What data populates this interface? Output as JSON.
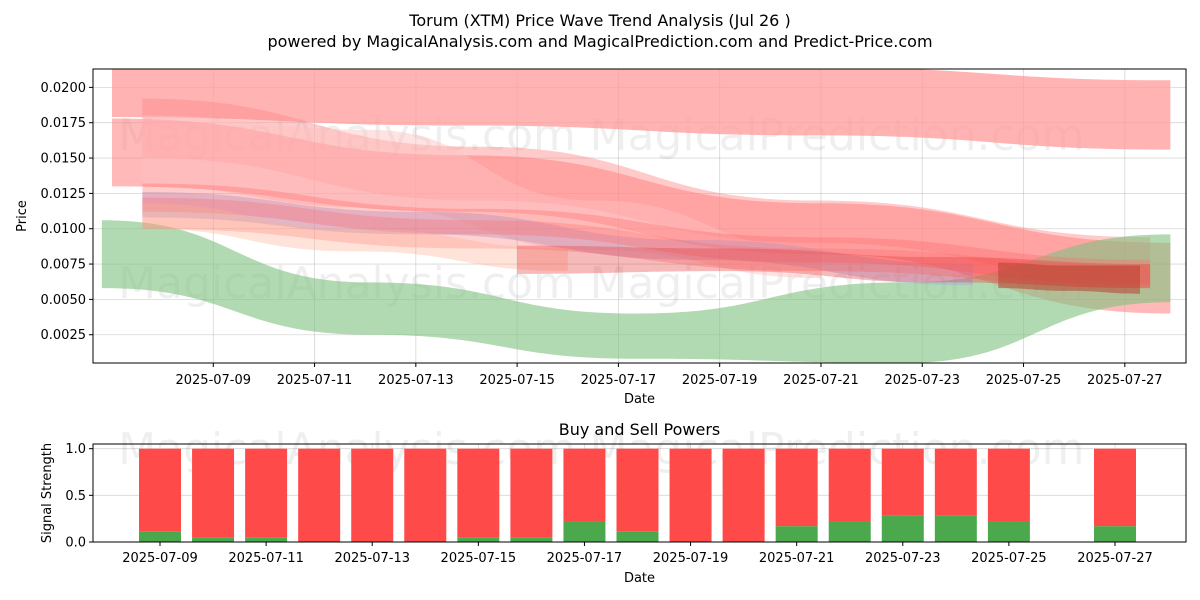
{
  "title_line1": "Torum (XTM) Price Wave Trend Analysis (Jul 26 )",
  "title_line2": "powered by MagicalAnalysis.com and MagicalPrediction.com and Predict-Price.com",
  "watermarks": [
    "MagicalAnalysis.com",
    "MagicalPrediction.com"
  ],
  "colors": {
    "sell": "#ff4a4a",
    "buy": "#4ca84c",
    "band_red": "#ff8080",
    "band_green": "#7fc27f",
    "band_blue": "#a0a8e0"
  },
  "chart_data": [
    {
      "type": "area",
      "title": "Price Wave Trend",
      "xlabel": "Date",
      "ylabel": "Price",
      "xlim": [
        "2025-07-06T15:00",
        "2025-07-28T05:00"
      ],
      "ylim": [
        0.0005,
        0.0213
      ],
      "x_ticks": [
        "2025-07-09",
        "2025-07-11",
        "2025-07-13",
        "2025-07-15",
        "2025-07-17",
        "2025-07-19",
        "2025-07-21",
        "2025-07-23",
        "2025-07-25",
        "2025-07-27"
      ],
      "y_ticks": [
        "0.0025",
        "0.0050",
        "0.0075",
        "0.0100",
        "0.0125",
        "0.0150",
        "0.0175",
        "0.0200"
      ],
      "grid": true,
      "series": [
        {
          "name": "band-top",
          "color": "#ff9a9a",
          "opacity": 0.75,
          "x0": "2025-07-07",
          "x1": "2025-07-27.9",
          "upper": [
            0.0214,
            0.0214,
            0.0214,
            0.0205
          ],
          "lower": [
            0.0179,
            0.0173,
            0.0166,
            0.0156
          ]
        },
        {
          "name": "band-wide-red",
          "color": "#ff8080",
          "opacity": 0.55,
          "x0": "2025-07-07",
          "x1": "2025-07-27.9",
          "upper": [
            0.0178,
            0.0152,
            0.0118,
            0.009
          ],
          "lower": [
            0.013,
            0.0112,
            0.0082,
            0.004
          ]
        },
        {
          "name": "band-upper-red",
          "color": "#ff8a8a",
          "opacity": 0.45,
          "x0": "2025-07-07.6",
          "x1": "2025-07-27.5",
          "upper": [
            0.0192,
            0.0158,
            0.012,
            0.0094
          ],
          "lower": [
            0.015,
            0.012,
            0.009,
            0.0062
          ]
        },
        {
          "name": "band-pink-curve",
          "color": "#ffc0c0",
          "opacity": 0.45,
          "x0": "2025-07-07.6",
          "x1": "2025-07-21",
          "upper": [
            0.018,
            0.017,
            0.012,
            0.0085
          ],
          "lower": [
            0.013,
            0.0115,
            0.0085,
            0.0065
          ]
        },
        {
          "name": "band-green",
          "color": "#7fc27f",
          "opacity": 0.6,
          "x0": "2025-07-06.8",
          "x1": "2025-07-27.9",
          "upper": [
            0.0106,
            0.0062,
            0.004,
            0.0062,
            0.0096
          ],
          "lower": [
            0.0058,
            0.0025,
            0.0008,
            0.0005,
            0.0048
          ]
        },
        {
          "name": "band-blue",
          "color": "#a0a8e0",
          "opacity": 0.45,
          "x0": "2025-07-07.6",
          "x1": "2025-07-24",
          "upper": [
            0.0126,
            0.0112,
            0.0092,
            0.0075
          ],
          "lower": [
            0.0108,
            0.0096,
            0.0078,
            0.006
          ]
        },
        {
          "name": "band-mid-red-1",
          "color": "#ff6a6a",
          "opacity": 0.35,
          "x0": "2025-07-07.6",
          "x1": "2025-07-27.5",
          "upper": [
            0.0132,
            0.0114,
            0.0094,
            0.0078
          ],
          "lower": [
            0.0112,
            0.0096,
            0.0076,
            0.006
          ]
        },
        {
          "name": "band-mid-red-2",
          "color": "#ff6a6a",
          "opacity": 0.3,
          "x0": "2025-07-07.6",
          "x1": "2025-07-27.5",
          "upper": [
            0.0122,
            0.0106,
            0.0086,
            0.0074
          ],
          "lower": [
            0.01,
            0.0086,
            0.007,
            0.0058
          ]
        },
        {
          "name": "band-orange",
          "color": "#ffb090",
          "opacity": 0.35,
          "x0": "2025-07-07.6",
          "x1": "2025-07-16",
          "upper": [
            0.0118,
            0.01,
            0.0086
          ],
          "lower": [
            0.01,
            0.0084,
            0.007
          ]
        },
        {
          "name": "band-deep-red",
          "color": "#e83a3a",
          "opacity": 0.35,
          "x0": "2025-07-15",
          "x1": "2025-07-27.5",
          "upper": [
            0.0088,
            0.0086,
            0.008,
            0.0075
          ],
          "lower": [
            0.0068,
            0.007,
            0.0062,
            0.0058
          ]
        },
        {
          "name": "band-dark-end",
          "color": "#b84030",
          "opacity": 0.55,
          "x0": "2025-07-24.5",
          "x1": "2025-07-27.3",
          "upper": [
            0.0076,
            0.0074,
            0.0074
          ],
          "lower": [
            0.0058,
            0.0056,
            0.0054
          ]
        }
      ]
    },
    {
      "type": "bar",
      "title": "Buy and Sell Powers",
      "xlabel": "Date",
      "ylabel": "Signal Strength",
      "ylim": [
        0,
        1.05
      ],
      "y_ticks": [
        "0.0",
        "0.5",
        "1.0"
      ],
      "x_ticks": [
        "2025-07-09",
        "2025-07-11",
        "2025-07-13",
        "2025-07-15",
        "2025-07-17",
        "2025-07-19",
        "2025-07-21",
        "2025-07-23",
        "2025-07-25",
        "2025-07-27"
      ],
      "stacked": true,
      "categories": [
        "2025-07-09",
        "2025-07-10",
        "2025-07-11",
        "2025-07-12",
        "2025-07-13",
        "2025-07-14",
        "2025-07-15",
        "2025-07-16",
        "2025-07-17",
        "2025-07-18",
        "2025-07-19",
        "2025-07-20",
        "2025-07-21",
        "2025-07-22",
        "2025-07-23",
        "2025-07-24",
        "2025-07-25",
        "2025-07-27"
      ],
      "series": [
        {
          "name": "Buy",
          "values": [
            0.11,
            0.05,
            0.05,
            0.0,
            0.0,
            0.0,
            0.05,
            0.05,
            0.22,
            0.11,
            0.0,
            0.0,
            0.17,
            0.22,
            0.28,
            0.28,
            0.22,
            0.17
          ]
        },
        {
          "name": "Sell",
          "values": [
            0.89,
            0.95,
            0.95,
            1.0,
            1.0,
            1.0,
            0.95,
            0.95,
            0.78,
            0.89,
            1.0,
            1.0,
            0.83,
            0.78,
            0.72,
            0.72,
            0.78,
            0.83
          ]
        }
      ]
    }
  ]
}
